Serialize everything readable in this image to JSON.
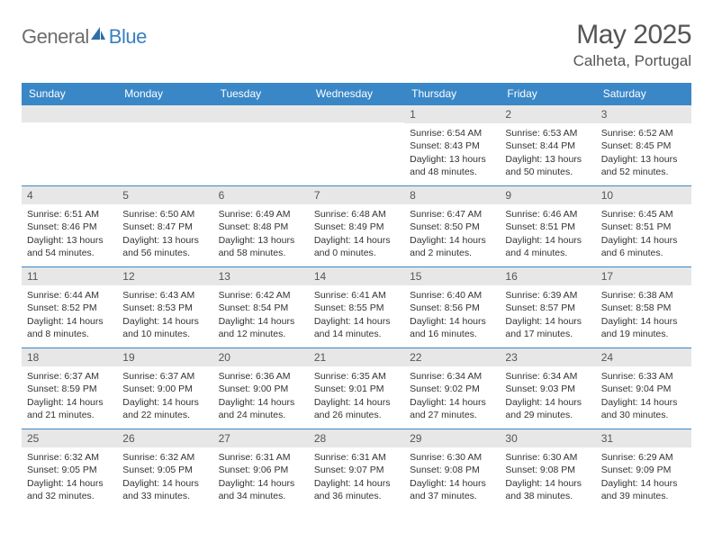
{
  "brand": {
    "text1": "General",
    "text2": "Blue"
  },
  "title": "May 2025",
  "location": "Calheta, Portugal",
  "colors": {
    "header_bg": "#3a87c7",
    "header_text": "#ffffff",
    "daynum_bg": "#e7e7e7",
    "daynum_border": "#3a87c7",
    "body_text": "#333333",
    "title_text": "#555555",
    "logo_gray": "#6d6d6d",
    "logo_blue": "#3a7fbf"
  },
  "weekdays": [
    "Sunday",
    "Monday",
    "Tuesday",
    "Wednesday",
    "Thursday",
    "Friday",
    "Saturday"
  ],
  "first_weekday_index": 4,
  "days": {
    "1": {
      "sunrise": "6:54 AM",
      "sunset": "8:43 PM",
      "daylight": "13 hours and 48 minutes."
    },
    "2": {
      "sunrise": "6:53 AM",
      "sunset": "8:44 PM",
      "daylight": "13 hours and 50 minutes."
    },
    "3": {
      "sunrise": "6:52 AM",
      "sunset": "8:45 PM",
      "daylight": "13 hours and 52 minutes."
    },
    "4": {
      "sunrise": "6:51 AM",
      "sunset": "8:46 PM",
      "daylight": "13 hours and 54 minutes."
    },
    "5": {
      "sunrise": "6:50 AM",
      "sunset": "8:47 PM",
      "daylight": "13 hours and 56 minutes."
    },
    "6": {
      "sunrise": "6:49 AM",
      "sunset": "8:48 PM",
      "daylight": "13 hours and 58 minutes."
    },
    "7": {
      "sunrise": "6:48 AM",
      "sunset": "8:49 PM",
      "daylight": "14 hours and 0 minutes."
    },
    "8": {
      "sunrise": "6:47 AM",
      "sunset": "8:50 PM",
      "daylight": "14 hours and 2 minutes."
    },
    "9": {
      "sunrise": "6:46 AM",
      "sunset": "8:51 PM",
      "daylight": "14 hours and 4 minutes."
    },
    "10": {
      "sunrise": "6:45 AM",
      "sunset": "8:51 PM",
      "daylight": "14 hours and 6 minutes."
    },
    "11": {
      "sunrise": "6:44 AM",
      "sunset": "8:52 PM",
      "daylight": "14 hours and 8 minutes."
    },
    "12": {
      "sunrise": "6:43 AM",
      "sunset": "8:53 PM",
      "daylight": "14 hours and 10 minutes."
    },
    "13": {
      "sunrise": "6:42 AM",
      "sunset": "8:54 PM",
      "daylight": "14 hours and 12 minutes."
    },
    "14": {
      "sunrise": "6:41 AM",
      "sunset": "8:55 PM",
      "daylight": "14 hours and 14 minutes."
    },
    "15": {
      "sunrise": "6:40 AM",
      "sunset": "8:56 PM",
      "daylight": "14 hours and 16 minutes."
    },
    "16": {
      "sunrise": "6:39 AM",
      "sunset": "8:57 PM",
      "daylight": "14 hours and 17 minutes."
    },
    "17": {
      "sunrise": "6:38 AM",
      "sunset": "8:58 PM",
      "daylight": "14 hours and 19 minutes."
    },
    "18": {
      "sunrise": "6:37 AM",
      "sunset": "8:59 PM",
      "daylight": "14 hours and 21 minutes."
    },
    "19": {
      "sunrise": "6:37 AM",
      "sunset": "9:00 PM",
      "daylight": "14 hours and 22 minutes."
    },
    "20": {
      "sunrise": "6:36 AM",
      "sunset": "9:00 PM",
      "daylight": "14 hours and 24 minutes."
    },
    "21": {
      "sunrise": "6:35 AM",
      "sunset": "9:01 PM",
      "daylight": "14 hours and 26 minutes."
    },
    "22": {
      "sunrise": "6:34 AM",
      "sunset": "9:02 PM",
      "daylight": "14 hours and 27 minutes."
    },
    "23": {
      "sunrise": "6:34 AM",
      "sunset": "9:03 PM",
      "daylight": "14 hours and 29 minutes."
    },
    "24": {
      "sunrise": "6:33 AM",
      "sunset": "9:04 PM",
      "daylight": "14 hours and 30 minutes."
    },
    "25": {
      "sunrise": "6:32 AM",
      "sunset": "9:05 PM",
      "daylight": "14 hours and 32 minutes."
    },
    "26": {
      "sunrise": "6:32 AM",
      "sunset": "9:05 PM",
      "daylight": "14 hours and 33 minutes."
    },
    "27": {
      "sunrise": "6:31 AM",
      "sunset": "9:06 PM",
      "daylight": "14 hours and 34 minutes."
    },
    "28": {
      "sunrise": "6:31 AM",
      "sunset": "9:07 PM",
      "daylight": "14 hours and 36 minutes."
    },
    "29": {
      "sunrise": "6:30 AM",
      "sunset": "9:08 PM",
      "daylight": "14 hours and 37 minutes."
    },
    "30": {
      "sunrise": "6:30 AM",
      "sunset": "9:08 PM",
      "daylight": "14 hours and 38 minutes."
    },
    "31": {
      "sunrise": "6:29 AM",
      "sunset": "9:09 PM",
      "daylight": "14 hours and 39 minutes."
    }
  },
  "labels": {
    "sunrise": "Sunrise: ",
    "sunset": "Sunset: ",
    "daylight": "Daylight: "
  }
}
